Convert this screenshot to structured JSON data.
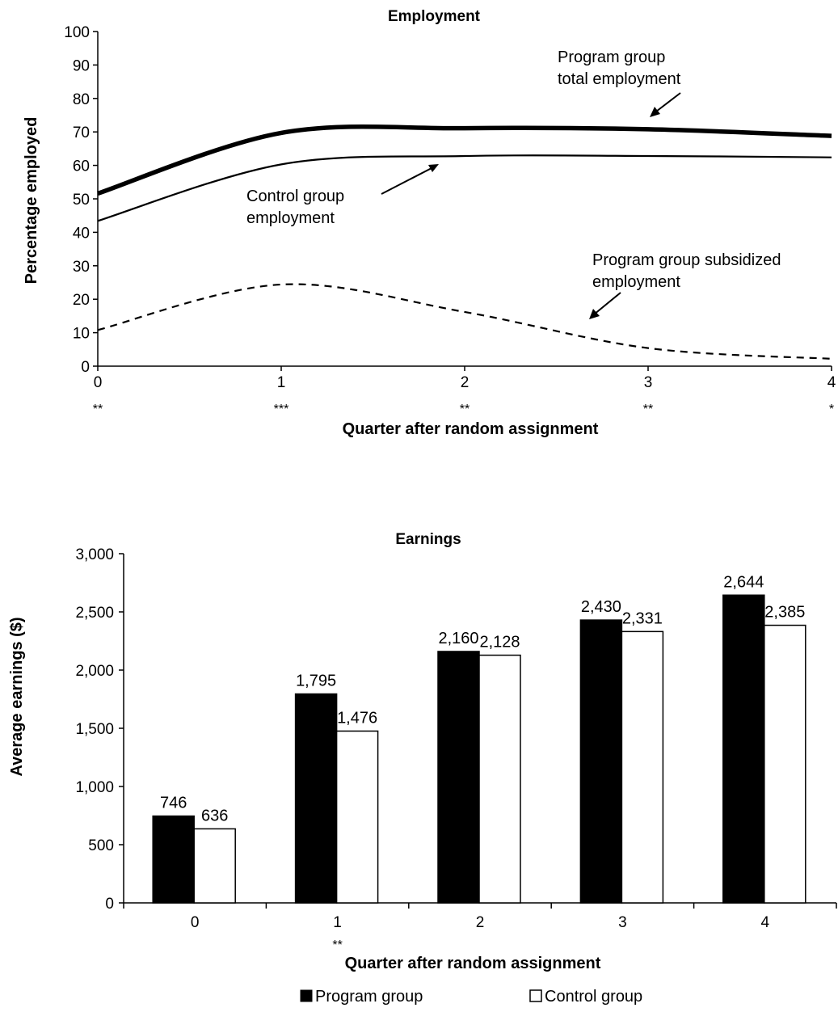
{
  "chart_data": [
    {
      "type": "line",
      "title": "Employment",
      "xlabel": "Quarter after random assignment",
      "ylabel": "Percentage employed",
      "xlim": [
        0,
        4
      ],
      "ylim": [
        0,
        100
      ],
      "x_ticks": [
        "0",
        "1",
        "2",
        "3",
        "4"
      ],
      "y_ticks": [
        "0",
        "10",
        "20",
        "30",
        "40",
        "50",
        "60",
        "70",
        "80",
        "90",
        "100"
      ],
      "significance": [
        "**",
        "***",
        "**",
        "**",
        "*"
      ],
      "grid": false,
      "series": [
        {
          "name": "Program group total employment",
          "x": [
            0,
            1,
            2,
            3,
            4
          ],
          "values": [
            51.6,
            69.7,
            71.1,
            70.8,
            68.8
          ]
        },
        {
          "name": "Control group employment",
          "x": [
            0,
            1,
            2,
            3,
            4
          ],
          "values": [
            43.4,
            60.3,
            62.8,
            62.8,
            62.4
          ]
        },
        {
          "name": "Program group subsidized employment",
          "x": [
            0,
            1,
            2,
            3,
            4
          ],
          "values": [
            10.8,
            24.4,
            16.2,
            5.4,
            2.2
          ]
        }
      ],
      "annotations": [
        {
          "lines": [
            "Program group",
            "total employment"
          ]
        },
        {
          "lines": [
            "Control group",
            "employment"
          ]
        },
        {
          "lines": [
            "Program group subsidized",
            "employment"
          ]
        }
      ]
    },
    {
      "type": "bar",
      "title": "Earnings",
      "xlabel": "Quarter after random assignment",
      "ylabel": "Average earnings ($)",
      "ylim": [
        0,
        3000
      ],
      "categories": [
        "0",
        "1",
        "2",
        "3",
        "4"
      ],
      "y_ticks": [
        "0",
        "500",
        "1,000",
        "1,500",
        "2,000",
        "2,500",
        "3,000"
      ],
      "significance": [
        "",
        "**",
        "",
        "",
        ""
      ],
      "grid": false,
      "legend_position": "bottom",
      "series": [
        {
          "name": "Program group",
          "color": "#000000",
          "values": [
            746,
            1795,
            2160,
            2430,
            2644
          ],
          "labels": [
            "746",
            "1,795",
            "2,160",
            "2,430",
            "2,644"
          ]
        },
        {
          "name": "Control group",
          "color": "#ffffff",
          "values": [
            636,
            1476,
            2128,
            2331,
            2385
          ],
          "labels": [
            "636",
            "1,476",
            "2,128",
            "2,331",
            "2,385"
          ]
        }
      ]
    }
  ]
}
